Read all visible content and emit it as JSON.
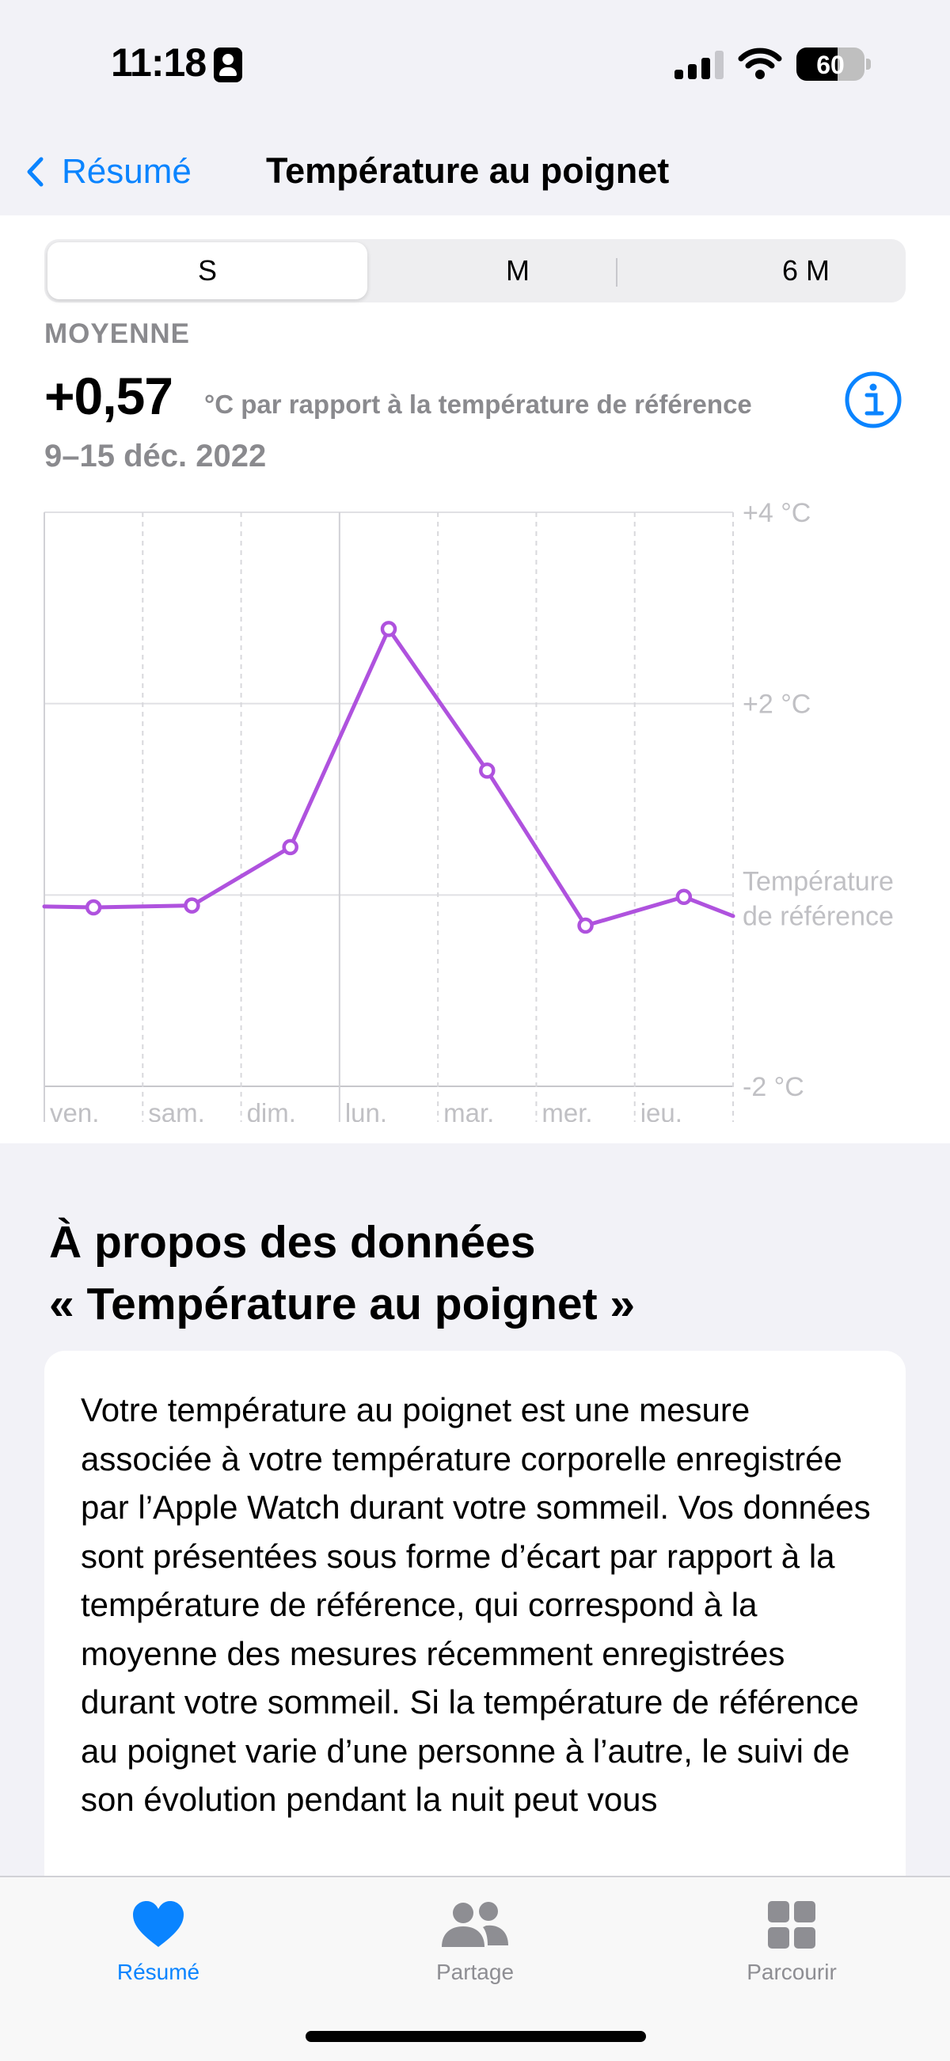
{
  "status_bar": {
    "time": "11:18",
    "battery": "60",
    "battery_level": 0.6
  },
  "nav": {
    "back_label": "Résumé",
    "title": "Température au poignet"
  },
  "segments": [
    {
      "label": "S",
      "selected": true
    },
    {
      "label": "M",
      "selected": false
    },
    {
      "label": "6 M",
      "selected": false
    }
  ],
  "summary": {
    "label": "MOYENNE",
    "value": "+0,57",
    "unit": "°C par rapport à la température de référence",
    "date_range": "9–15 déc. 2022"
  },
  "chart_data": {
    "type": "line",
    "categories": [
      "ven.",
      "sam.",
      "dim.",
      "lun.",
      "mar.",
      "mer.",
      "jeu."
    ],
    "series": [
      {
        "values": [
          -0.13,
          -0.11,
          0.5,
          2.78,
          1.3,
          -0.32,
          -0.02
        ]
      }
    ],
    "line_start_value": -0.12,
    "line_end_value": -0.22,
    "y_ticks": [
      {
        "label": "+4 °C",
        "value": 4
      },
      {
        "label": "+2 °C",
        "value": 2
      },
      {
        "label": "Température de référence",
        "value": 0
      },
      {
        "label": "-2 °C",
        "value": -2
      }
    ],
    "ylim": [
      -2,
      4
    ],
    "grid": true,
    "line_color": "#af52de"
  },
  "about": {
    "title_line1": "À propos des données",
    "title_line2": "« Température au poignet »",
    "text": "Votre température au poignet est une mesure associée à votre température corporelle enregistrée par l’Apple Watch durant votre sommeil. Vos données sont présentées sous forme d’écart par rapport à la température de référence, qui correspond à la moyenne des mesures récemment enregistrées durant votre sommeil. Si la température de référence au poignet varie d’une personne à l’autre, le suivi de son évolution pendant la nuit peut vous"
  },
  "tabs": [
    {
      "label": "Résumé",
      "icon": "heart-icon",
      "selected": true
    },
    {
      "label": "Partage",
      "icon": "people-icon",
      "selected": false
    },
    {
      "label": "Parcourir",
      "icon": "grid-icon",
      "selected": false
    }
  ],
  "colors": {
    "accent": "#0a84ff",
    "chart_line": "#af52de",
    "inactive_tab": "#8e8e93"
  }
}
